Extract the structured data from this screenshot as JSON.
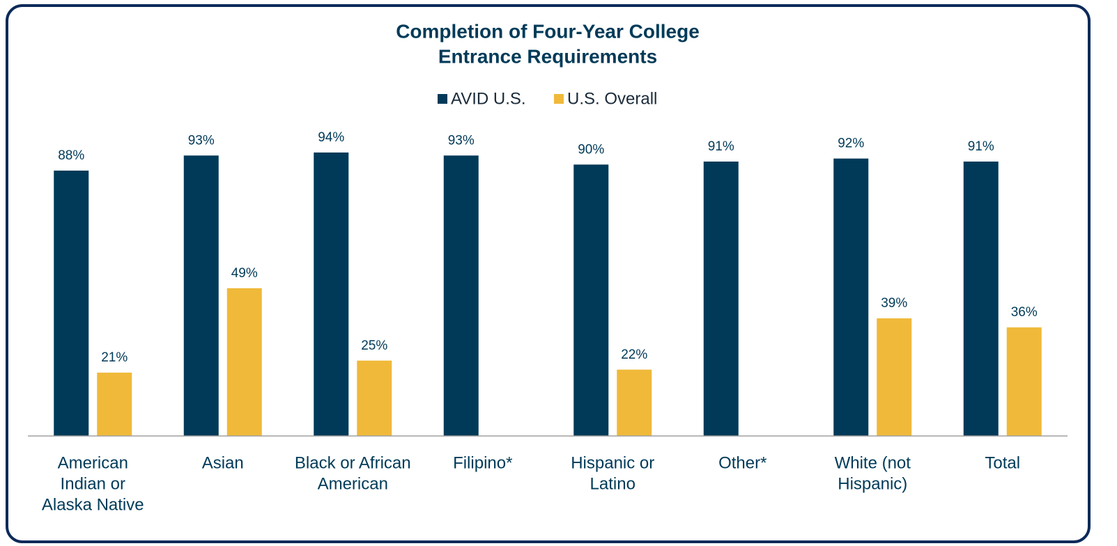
{
  "chart_data": {
    "type": "bar",
    "title": [
      "Completion of Four-Year College",
      "Entrance Requirements"
    ],
    "categories": [
      [
        "American",
        "Indian or",
        "Alaska Native"
      ],
      [
        "Asian"
      ],
      [
        "Black or African",
        "American"
      ],
      [
        "Filipino*"
      ],
      [
        "Hispanic or",
        "Latino"
      ],
      [
        "Other*"
      ],
      [
        "White (not",
        "Hispanic)"
      ],
      [
        "Total"
      ]
    ],
    "series": [
      {
        "name": "AVID U.S.",
        "color": "#003a58",
        "values": [
          88,
          93,
          94,
          93,
          90,
          91,
          92,
          91
        ],
        "value_labels": [
          "88%",
          "93%",
          "94%",
          "93%",
          "90%",
          "91%",
          "92%",
          "91%"
        ]
      },
      {
        "name": "U.S. Overall",
        "color": "#f0b93a",
        "values": [
          21,
          49,
          25,
          null,
          22,
          null,
          39,
          36
        ],
        "value_labels": [
          "21%",
          "49%",
          "25%",
          null,
          "22%",
          null,
          "39%",
          "36%"
        ]
      }
    ],
    "ylim": [
      0,
      100
    ],
    "legend": "top"
  }
}
